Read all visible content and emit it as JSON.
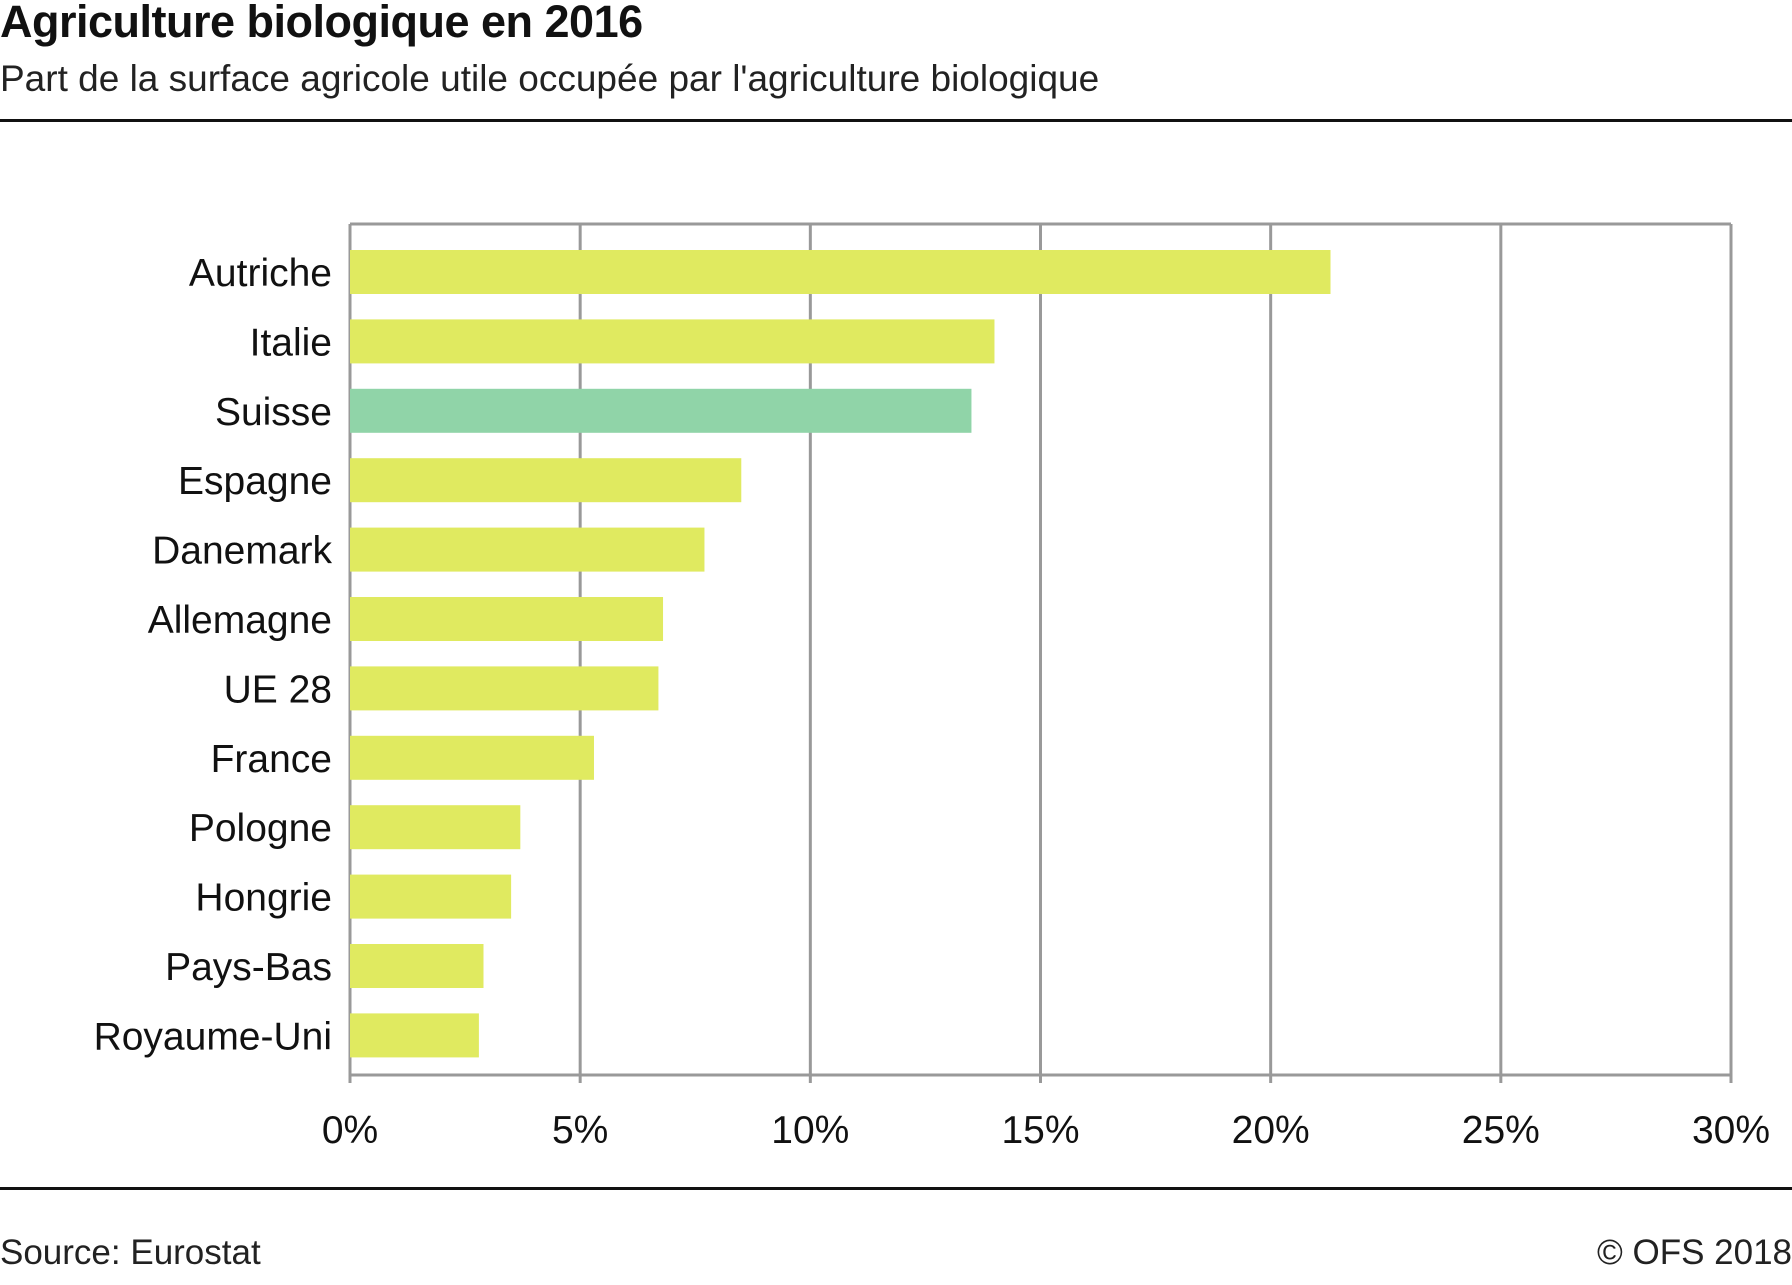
{
  "header": {
    "title": "Agriculture biologique en 2016",
    "subtitle": "Part de la surface agricole utile occupée par l'agriculture biologique"
  },
  "footer": {
    "source": "Source: Eurostat",
    "copyright": "© OFS  2018"
  },
  "chart_data": {
    "type": "bar",
    "orientation": "horizontal",
    "title": "Agriculture biologique en 2016",
    "subtitle": "Part de la surface agricole utile occupée par l'agriculture biologique",
    "categories": [
      "Autriche",
      "Italie",
      "Suisse",
      "Espagne",
      "Danemark",
      "Allemagne",
      "UE 28",
      "France",
      "Pologne",
      "Hongrie",
      "Pays-Bas",
      "Royaume-Uni"
    ],
    "values": [
      21.3,
      14.0,
      13.5,
      8.5,
      7.7,
      6.8,
      6.7,
      5.3,
      3.7,
      3.5,
      2.9,
      2.8
    ],
    "highlight": "Suisse",
    "colors": {
      "default": "#e0ea60",
      "highlight": "#90d4a8",
      "grid": "#999999"
    },
    "xlim": [
      0,
      30
    ],
    "xticks": [
      0,
      5,
      10,
      15,
      20,
      25,
      30
    ],
    "xtick_labels": [
      "0%",
      "5%",
      "10%",
      "15%",
      "20%",
      "25%",
      "30%"
    ],
    "xlabel": "",
    "ylabel": "",
    "grid": true
  }
}
